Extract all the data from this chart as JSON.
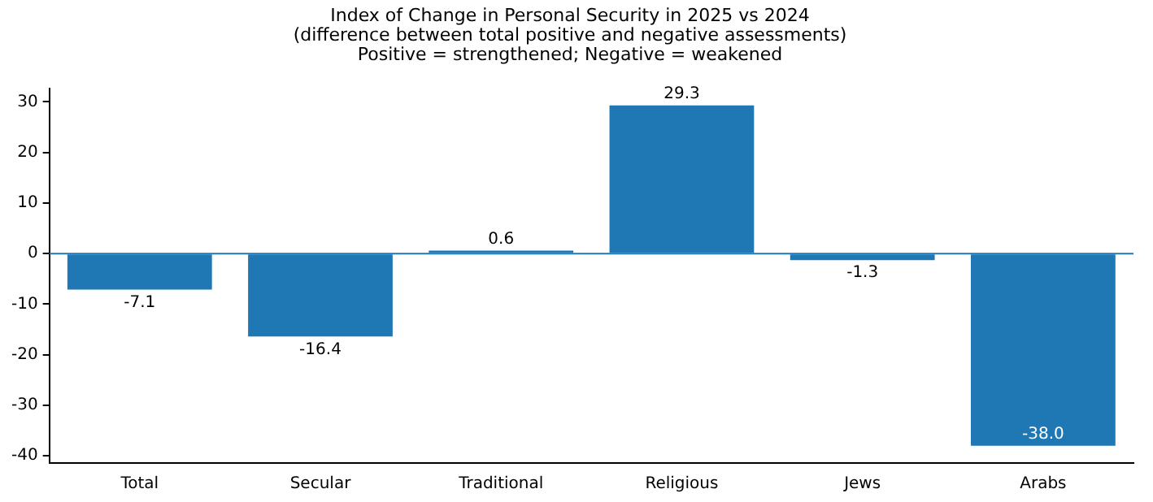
{
  "chart_data": {
    "type": "bar",
    "title": "Index of Change in Personal Security in 2025 vs 2024\n(difference between total positive and negative assessments)\nPositive = strengthened; Negative = weakened",
    "categories": [
      "Total",
      "Secular",
      "Traditional",
      "Religious",
      "Jews",
      "Arabs"
    ],
    "values": [
      -7.1,
      -16.4,
      0.6,
      29.3,
      -1.3,
      -38.0
    ],
    "value_labels": [
      "-7.1",
      "-16.4",
      "0.6",
      "29.3",
      "-1.3",
      "-38.0"
    ],
    "color": "#1f77b4",
    "ylim": [
      -41.4,
      32.7
    ],
    "yticks": [
      -40,
      -30,
      -20,
      -10,
      0,
      10,
      20,
      30
    ],
    "ref_lines": [
      {
        "axis": "y",
        "value": 0,
        "color": "#1f77b4"
      }
    ],
    "grid": false,
    "legend": false
  }
}
